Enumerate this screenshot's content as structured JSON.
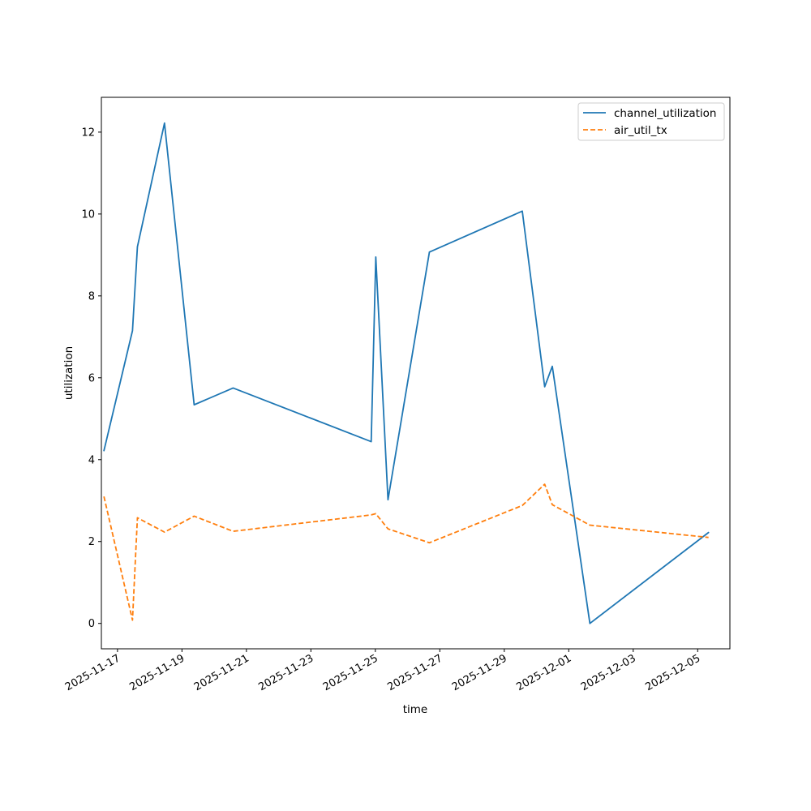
{
  "chart_data": {
    "type": "line",
    "title": "",
    "xlabel": "time",
    "ylabel": "utilization",
    "x_type": "date",
    "xlim": [
      "2025-11-16T12:00:00",
      "2025-12-06T00:00:00"
    ],
    "ylim": [
      -0.62,
      12.85
    ],
    "x_ticks": [
      "2025-11-17",
      "2025-11-19",
      "2025-11-21",
      "2025-11-23",
      "2025-11-25",
      "2025-11-27",
      "2025-11-29",
      "2025-12-01",
      "2025-12-03",
      "2025-12-05"
    ],
    "y_ticks": [
      0,
      2,
      4,
      6,
      8,
      10,
      12
    ],
    "y_tick_labels": [
      "0",
      "2",
      "4",
      "6",
      "8",
      "10",
      "12"
    ],
    "grid": false,
    "legend": "top-right",
    "series": [
      {
        "name": "channel_utilization",
        "color": "#1f77b4",
        "style": "solid",
        "points": [
          [
            "2025-11-16T13:55:00",
            4.22
          ],
          [
            "2025-11-17T11:10:00",
            7.15
          ],
          [
            "2025-11-17T14:50:00",
            9.2
          ],
          [
            "2025-11-18T11:00:00",
            12.22
          ],
          [
            "2025-11-19T09:05:00",
            5.34
          ],
          [
            "2025-11-20T14:05:00",
            5.75
          ],
          [
            "2025-11-24T20:55:00",
            4.44
          ],
          [
            "2025-11-25T00:20:00",
            8.95
          ],
          [
            "2025-11-25T09:25:00",
            3.02
          ],
          [
            "2025-11-26T16:15:00",
            9.07
          ],
          [
            "2025-11-29T13:25:00",
            10.07
          ],
          [
            "2025-11-30T06:05:00",
            5.78
          ],
          [
            "2025-11-30T11:45:00",
            6.28
          ],
          [
            "2025-12-01T15:45:00",
            0.0
          ],
          [
            "2025-12-05T08:05:00",
            2.22
          ]
        ]
      },
      {
        "name": "air_util_tx",
        "color": "#ff7f0e",
        "style": "dashed",
        "points": [
          [
            "2025-11-16T13:55:00",
            3.1
          ],
          [
            "2025-11-17T11:10:00",
            0.08
          ],
          [
            "2025-11-17T14:50:00",
            2.58
          ],
          [
            "2025-11-18T11:00:00",
            2.23
          ],
          [
            "2025-11-19T09:05:00",
            2.62
          ],
          [
            "2025-11-20T14:05:00",
            2.25
          ],
          [
            "2025-11-24T20:55:00",
            2.65
          ],
          [
            "2025-11-25T00:20:00",
            2.68
          ],
          [
            "2025-11-25T09:25:00",
            2.31
          ],
          [
            "2025-11-26T16:15:00",
            1.97
          ],
          [
            "2025-11-29T13:25:00",
            2.88
          ],
          [
            "2025-11-30T06:05:00",
            3.4
          ],
          [
            "2025-11-30T11:45:00",
            2.9
          ],
          [
            "2025-12-01T15:45:00",
            2.4
          ],
          [
            "2025-12-05T08:05:00",
            2.1
          ]
        ]
      }
    ]
  }
}
